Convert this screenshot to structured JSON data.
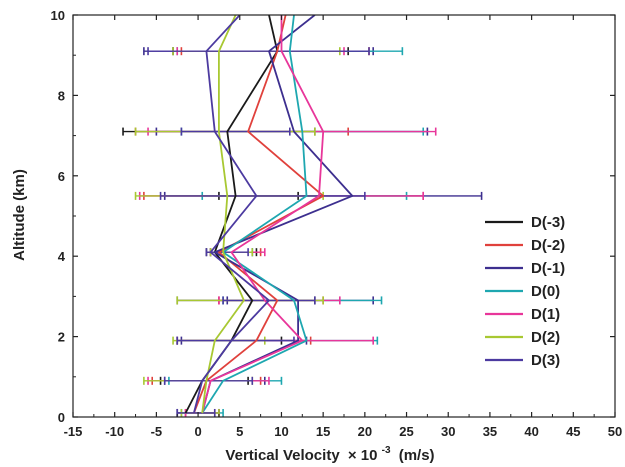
{
  "chart_data": {
    "type": "line",
    "orientation": "horizontal-profile",
    "xlabel": "Vertical Velocity",
    "xlabel_multiplier": "× 10",
    "xlabel_exponent": "-3",
    "xlabel_unit": "(m/s)",
    "ylabel": "Altitude (km)",
    "xlim": [
      -15,
      50
    ],
    "ylim": [
      0,
      10
    ],
    "x_ticks": [
      -15,
      -10,
      -5,
      0,
      5,
      10,
      15,
      20,
      25,
      30,
      35,
      40,
      45,
      50
    ],
    "y_ticks": [
      0,
      2,
      4,
      6,
      8,
      10
    ],
    "legend_position": "right",
    "grid": false,
    "altitudes": [
      0.1,
      0.9,
      1.9,
      2.9,
      4.1,
      5.5,
      7.1,
      9.1
    ],
    "series": [
      {
        "name": "D(-3)",
        "color": "#1a1a1a",
        "velocity": [
          -1.5,
          0.5,
          4.0,
          6.5,
          2.0,
          4.5,
          3.5,
          9.5,
          8.5
        ],
        "error_low": [
          -2.5,
          -4.5,
          -2.5,
          -2.5,
          1.0,
          2.5,
          -9.0,
          -3.0
        ],
        "error_high": [
          2.5,
          6.0,
          10.0,
          14.0,
          7.0,
          12.0,
          14.0,
          18.0
        ]
      },
      {
        "name": "D(-2)",
        "color": "#e0413c",
        "velocity": [
          -0.5,
          1.0,
          7.0,
          9.5,
          2.5,
          15.0,
          6.0,
          9.5,
          10.5
        ],
        "error_low": [
          -1.5,
          -5.5,
          -2.5,
          2.5,
          1.5,
          -6.5,
          -7.5,
          -2.0
        ],
        "error_high": [
          2.0,
          7.5,
          13.5,
          15.0,
          7.5,
          27.0,
          18.0,
          20.5
        ]
      },
      {
        "name": "D(-1)",
        "color": "#3d2f8f",
        "velocity": [
          0.5,
          1.5,
          12.0,
          12.0,
          2.0,
          18.5,
          11.5,
          8.5,
          14.0
        ],
        "error_low": [
          -2.5,
          -4.0,
          -2.0,
          3.5,
          1.5,
          -4.0,
          -5.0,
          -6.5
        ],
        "error_high": [
          2.5,
          8.0,
          13.0,
          21.0,
          6.5,
          34.0,
          27.5,
          21.0
        ]
      },
      {
        "name": "D(0)",
        "color": "#1ea7b0",
        "velocity": [
          0.5,
          3.0,
          13.0,
          11.5,
          3.0,
          13.0,
          12.5,
          11.0,
          11.5
        ],
        "error_low": [
          -2.0,
          -3.5,
          -2.5,
          3.0,
          1.5,
          0.5,
          -2.0,
          -2.5
        ],
        "error_high": [
          3.0,
          10.0,
          21.5,
          22.0,
          6.5,
          25.0,
          27.0,
          24.5
        ]
      },
      {
        "name": "D(1)",
        "color": "#e8369a",
        "velocity": [
          0.5,
          1.5,
          12.5,
          8.0,
          4.0,
          14.5,
          15.0,
          10.0,
          10.0
        ],
        "error_low": [
          -1.5,
          -6.0,
          -2.5,
          2.5,
          1.5,
          -7.0,
          -6.0,
          -2.5
        ],
        "error_high": [
          2.5,
          8.5,
          21.0,
          17.0,
          8.0,
          27.0,
          28.5,
          17.5
        ]
      },
      {
        "name": "D(2)",
        "color": "#a8c832",
        "velocity": [
          0.5,
          1.0,
          2.0,
          5.5,
          3.0,
          3.5,
          2.5,
          2.5,
          4.5
        ],
        "error_low": [
          -2.0,
          -6.5,
          -3.0,
          -2.5,
          1.5,
          -7.5,
          -7.5,
          -3.0
        ],
        "error_high": [
          2.5,
          6.5,
          8.0,
          15.0,
          6.5,
          15.0,
          14.0,
          17.0
        ]
      },
      {
        "name": "D(3)",
        "color": "#4c3aa0",
        "velocity": [
          -0.5,
          0.5,
          4.0,
          8.5,
          1.5,
          7.0,
          2.0,
          1.0,
          5.0
        ],
        "error_low": [
          -2.5,
          -4.0,
          -2.5,
          3.0,
          1.0,
          -4.5,
          -2.0,
          -6.0
        ],
        "error_high": [
          2.0,
          6.5,
          11.5,
          14.0,
          6.0,
          20.0,
          11.0,
          20.5
        ]
      }
    ],
    "top_altitude": 10.0
  }
}
